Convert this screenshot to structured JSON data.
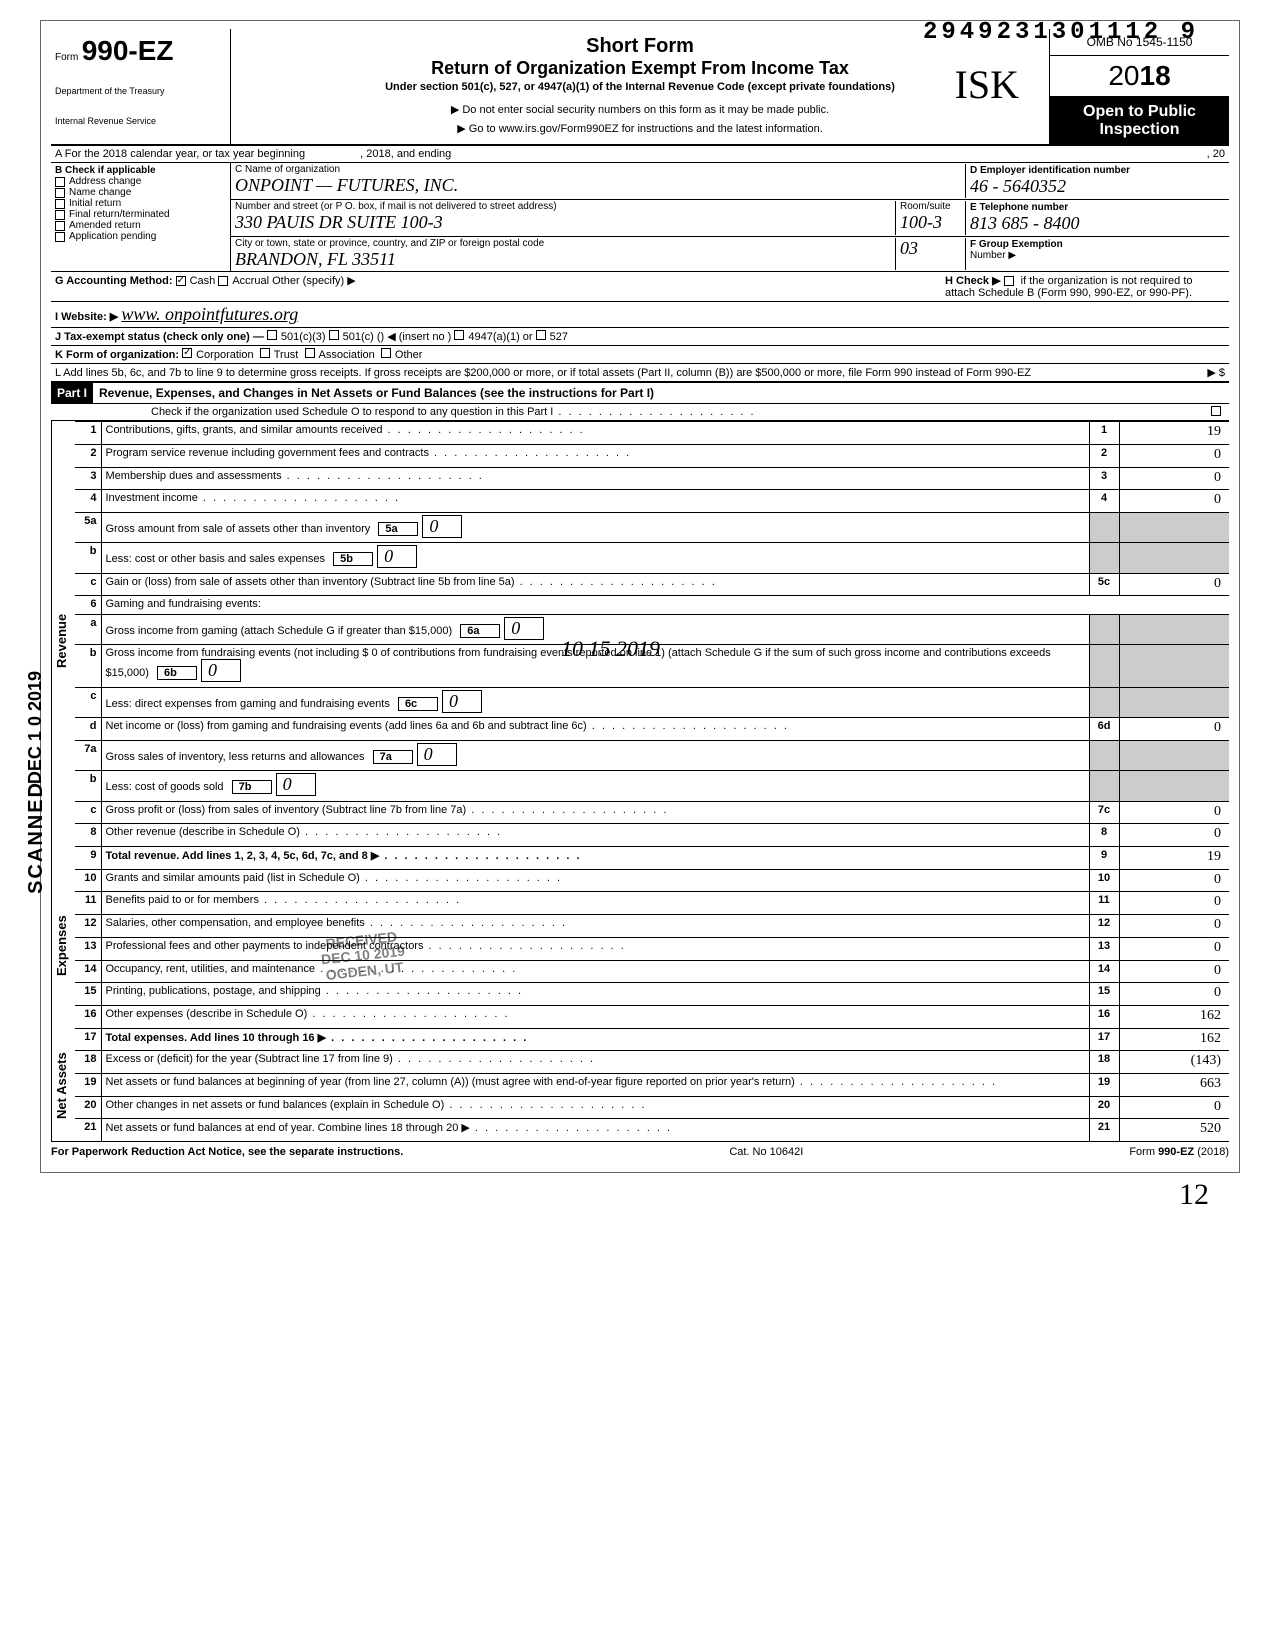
{
  "top_number": "2949231301112 9",
  "initials": "ISK",
  "form": {
    "prefix": "Form",
    "number": "990-EZ",
    "dept1": "Department of the Treasury",
    "dept2": "Internal Revenue Service"
  },
  "header": {
    "t1": "Short Form",
    "t2": "Return of Organization Exempt From Income Tax",
    "t3": "Under section 501(c), 527, or 4947(a)(1) of the Internal Revenue Code (except private foundations)",
    "t4": "▶ Do not enter social security numbers on this form as it may be made public.",
    "t5": "▶ Go to www.irs.gov/Form990EZ for instructions and the latest information."
  },
  "right": {
    "omb": "OMB No 1545-1150",
    "year_light": "20",
    "year_bold": "18",
    "open1": "Open to Public",
    "open2": "Inspection"
  },
  "rowA": {
    "left": "A  For the 2018 calendar year, or tax year beginning",
    "mid": ", 2018, and ending",
    "right": ", 20"
  },
  "B": {
    "title": "B  Check if applicable",
    "items": [
      "Address change",
      "Name change",
      "Initial return",
      "Final return/terminated",
      "Amended return",
      "Application pending"
    ]
  },
  "C": {
    "label_name": "C  Name of organization",
    "name": "ONPOINT — FUTURES, INC.",
    "label_addr": "Number and street (or P O. box, if mail is not delivered to street address)",
    "addr": "330  PAUIS  DR  SUITE 100-3",
    "room_label": "Room/suite",
    "room": "100-3",
    "label_city": "City or town, state or province, country, and ZIP or foreign postal code",
    "city": "BRANDON, FL   33511",
    "city_extra": "03"
  },
  "D": {
    "label": "D Employer identification number",
    "val": "46 - 5640352"
  },
  "E": {
    "label": "E Telephone number",
    "val": "813 685 - 8400"
  },
  "F": {
    "label": "F Group Exemption",
    "label2": "Number ▶"
  },
  "G": {
    "label": "G Accounting Method:",
    "cash": "Cash",
    "accrual": "Accrual",
    "other": "Other (specify) ▶"
  },
  "H": {
    "text1": "H Check ▶",
    "text2": "if the organization is not required to attach Schedule B (Form 990, 990-EZ, or 990-PF)."
  },
  "I": {
    "label": "I  Website: ▶",
    "val": "www. onpointfutures.org"
  },
  "J": {
    "label": "J  Tax-exempt status (check only one) —",
    "o1": "501(c)(3)",
    "o2": "501(c) (",
    "o2b": ")  ◀ (insert no )",
    "o3": "4947(a)(1) or",
    "o4": "527"
  },
  "K": {
    "label": "K  Form of organization:",
    "o1": "Corporation",
    "o2": "Trust",
    "o3": "Association",
    "o4": "Other"
  },
  "L": {
    "text": "L  Add lines 5b, 6c, and 7b to line 9 to determine gross receipts. If gross receipts are $200,000 or more, or if total assets (Part II, column (B)) are $500,000 or more, file Form 990 instead of Form 990-EZ",
    "arrow": "▶  $"
  },
  "part1": {
    "label": "Part I",
    "title": "Revenue, Expenses, and Changes in Net Assets or Fund Balances (see the instructions for Part I)",
    "check": "Check if the organization used Schedule O to respond to any question in this Part I"
  },
  "sections": {
    "revenue": "Revenue",
    "expenses": "Expenses",
    "netassets": "Net Assets"
  },
  "lines": [
    {
      "n": "1",
      "d": "Contributions, gifts, grants, and similar amounts received",
      "box": "1",
      "v": "19"
    },
    {
      "n": "2",
      "d": "Program service revenue including government fees and contracts",
      "box": "2",
      "v": "0"
    },
    {
      "n": "3",
      "d": "Membership dues and assessments",
      "box": "3",
      "v": "0"
    },
    {
      "n": "4",
      "d": "Investment income",
      "box": "4",
      "v": "0"
    },
    {
      "n": "5a",
      "d": "Gross amount from sale of assets other than inventory",
      "ibox": "5a",
      "iv": "0"
    },
    {
      "n": "b",
      "d": "Less: cost or other basis and sales expenses",
      "ibox": "5b",
      "iv": "0"
    },
    {
      "n": "c",
      "d": "Gain or (loss) from sale of assets other than inventory (Subtract line 5b from line 5a)",
      "box": "5c",
      "v": "0"
    },
    {
      "n": "6",
      "d": "Gaming and fundraising events:"
    },
    {
      "n": "a",
      "d": "Gross income from gaming (attach Schedule G if greater than $15,000)",
      "ibox": "6a",
      "iv": "0"
    },
    {
      "n": "b",
      "d": "Gross income from fundraising events (not including  $  0   of contributions from fundraising events reported on line 1) (attach Schedule G if the sum of such gross income and contributions exceeds $15,000)",
      "ibox": "6b",
      "iv": "0"
    },
    {
      "n": "c",
      "d": "Less: direct expenses from gaming and fundraising events",
      "ibox": "6c",
      "iv": "0"
    },
    {
      "n": "d",
      "d": "Net income or (loss) from gaming and fundraising events (add lines 6a and 6b and subtract line 6c)",
      "box": "6d",
      "v": "0"
    },
    {
      "n": "7a",
      "d": "Gross sales of inventory, less returns and allowances",
      "ibox": "7a",
      "iv": "0"
    },
    {
      "n": "b",
      "d": "Less: cost of goods sold",
      "ibox": "7b",
      "iv": "0"
    },
    {
      "n": "c",
      "d": "Gross profit or (loss) from sales of inventory (Subtract line 7b from line 7a)",
      "box": "7c",
      "v": "0"
    },
    {
      "n": "8",
      "d": "Other revenue (describe in Schedule O)",
      "box": "8",
      "v": "0"
    },
    {
      "n": "9",
      "d": "Total revenue. Add lines 1, 2, 3, 4, 5c, 6d, 7c, and 8   ▶",
      "box": "9",
      "v": "19",
      "bold": true
    },
    {
      "n": "10",
      "d": "Grants and similar amounts paid (list in Schedule O)",
      "box": "10",
      "v": "0"
    },
    {
      "n": "11",
      "d": "Benefits paid to or for members",
      "box": "11",
      "v": "0"
    },
    {
      "n": "12",
      "d": "Salaries, other compensation, and employee benefits",
      "box": "12",
      "v": "0"
    },
    {
      "n": "13",
      "d": "Professional fees and other payments to independent contractors",
      "box": "13",
      "v": "0"
    },
    {
      "n": "14",
      "d": "Occupancy, rent, utilities, and maintenance",
      "box": "14",
      "v": "0"
    },
    {
      "n": "15",
      "d": "Printing, publications, postage, and shipping",
      "box": "15",
      "v": "0"
    },
    {
      "n": "16",
      "d": "Other expenses (describe in Schedule O)",
      "box": "16",
      "v": "162"
    },
    {
      "n": "17",
      "d": "Total expenses. Add lines 10 through 16   ▶",
      "box": "17",
      "v": "162",
      "bold": true
    },
    {
      "n": "18",
      "d": "Excess or (deficit) for the year (Subtract line 17 from line 9)",
      "box": "18",
      "v": "(143)"
    },
    {
      "n": "19",
      "d": "Net assets or fund balances at beginning of year (from line 27, column (A)) (must agree with end-of-year figure reported on prior year's return)",
      "box": "19",
      "v": "663"
    },
    {
      "n": "20",
      "d": "Other changes in net assets or fund balances (explain in Schedule O)",
      "box": "20",
      "v": "0"
    },
    {
      "n": "21",
      "d": "Net assets or fund balances at end of year. Combine lines 18 through 20   ▶",
      "box": "21",
      "v": "520"
    }
  ],
  "stamp": {
    "l1": "RECEIVED",
    "l2": "DEC 10 2019",
    "l3": "OGDEN, UT"
  },
  "handdate": "10 15 2019",
  "footer": {
    "left": "For Paperwork Reduction Act Notice, see the separate instructions.",
    "mid": "Cat. No 10642I",
    "right": "Form 990-EZ (2018)"
  },
  "sig12": "12",
  "scanned": "SCANNED",
  "dec": "DEC 1 0 2019"
}
